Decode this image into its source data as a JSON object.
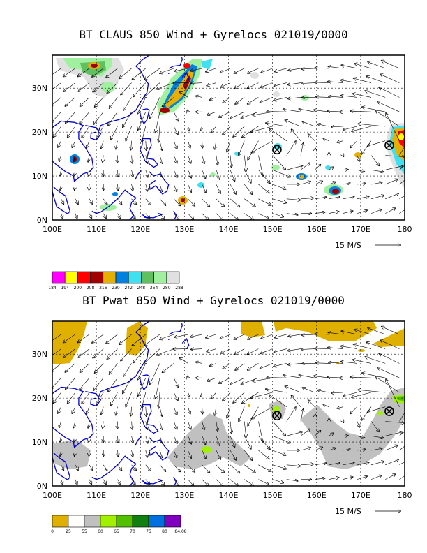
{
  "panels": [
    {
      "title": "BT CLAUS 850 Wind + Gyrelocs 021019/0000",
      "lat_labels": [
        "0N",
        "10N",
        "20N",
        "30N"
      ],
      "lon_labels": [
        "100E",
        "110E",
        "120E",
        "130E",
        "140E",
        "150E",
        "160E",
        "170E",
        "180"
      ],
      "ref_vector": "15 M/S",
      "colorbar_values": [
        "184",
        "194",
        "200",
        "208",
        "216",
        "230",
        "242",
        "248",
        "264",
        "280",
        "288"
      ],
      "colorbar_colors": [
        "#ff00ff",
        "#ffff00",
        "#ff0000",
        "#a00000",
        "#e6b000",
        "#0080e0",
        "#40e0f0",
        "#60c060",
        "#a0f0a0",
        "#e0e0e0"
      ]
    },
    {
      "title": "BT Pwat 850 Wind + Gyrelocs 021019/0000",
      "lat_labels": [
        "0N",
        "10N",
        "20N",
        "30N"
      ],
      "lon_labels": [
        "100E",
        "110E",
        "120E",
        "130E",
        "140E",
        "150E",
        "160E",
        "170E",
        "180"
      ],
      "ref_vector": "15 M/S",
      "colorbar_values": [
        "0",
        "25",
        "55",
        "60",
        "65",
        "70",
        "75",
        "80",
        "84.08"
      ],
      "colorbar_colors": [
        "#e0b000",
        "#ffffff",
        "#c0c0c0",
        "#a0f000",
        "#50c000",
        "#108010",
        "#0070e0",
        "#8000c0"
      ]
    }
  ],
  "gyre_locations": [
    {
      "lon": 151,
      "lat": 16
    },
    {
      "lon": 176.5,
      "lat": 17
    }
  ]
}
